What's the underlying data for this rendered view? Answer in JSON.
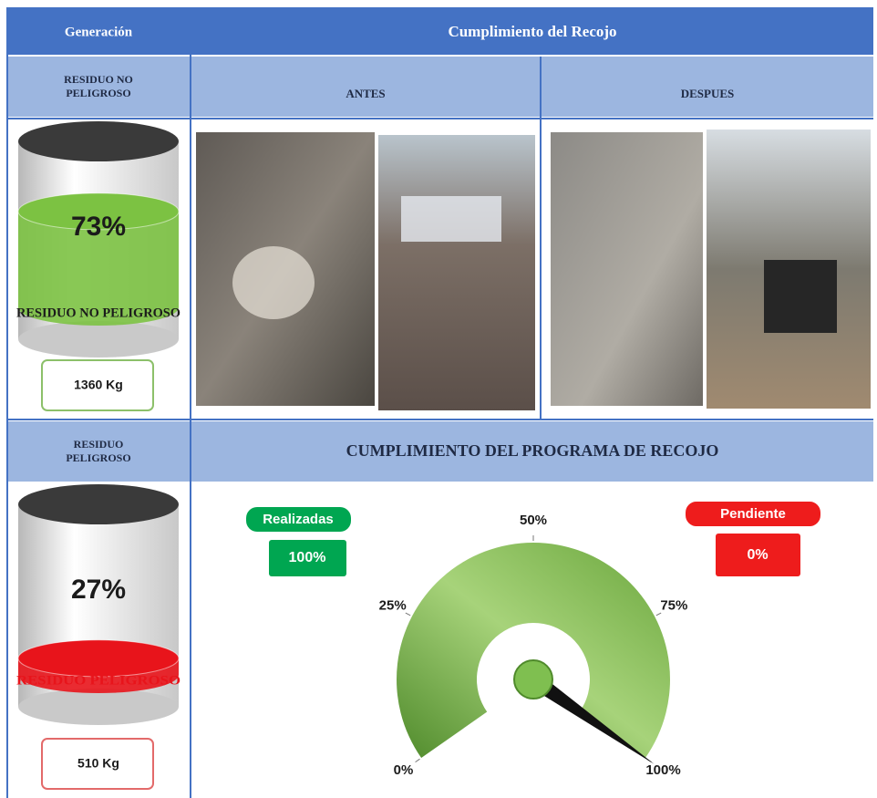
{
  "header": {
    "generation": "Generación",
    "title": "Cumplimiento del Recojo"
  },
  "subheader": {
    "category": "RESIDUO NO PELIGROSO",
    "before": "ANTES",
    "after": "DESPUES"
  },
  "cylinders": [
    {
      "label": "RESIDUO NO PELIGROSO",
      "percent": 73,
      "percent_label": "73%",
      "weight": "1360 Kg",
      "color": "#7cc242"
    },
    {
      "label": "RESIDUO PELIGROSO",
      "percent": 27,
      "percent_label": "27%",
      "weight": "510 Kg",
      "color": "#e8141b"
    }
  ],
  "section2": {
    "category": "RESIDUO PELIGROSO",
    "title": "CUMPLIMIENTO DEL PROGRAMA DE RECOJO"
  },
  "gauge": {
    "ticks": [
      {
        "value": 0,
        "label": "0%"
      },
      {
        "value": 25,
        "label": "25%"
      },
      {
        "value": 50,
        "label": "50%"
      },
      {
        "value": 75,
        "label": "75%"
      },
      {
        "value": 100,
        "label": "100%"
      }
    ],
    "realizadas": {
      "name": "Realizadas",
      "value": 100,
      "label": "100%"
    },
    "pendiente": {
      "name": "Pendiente",
      "label": "0%"
    }
  }
}
